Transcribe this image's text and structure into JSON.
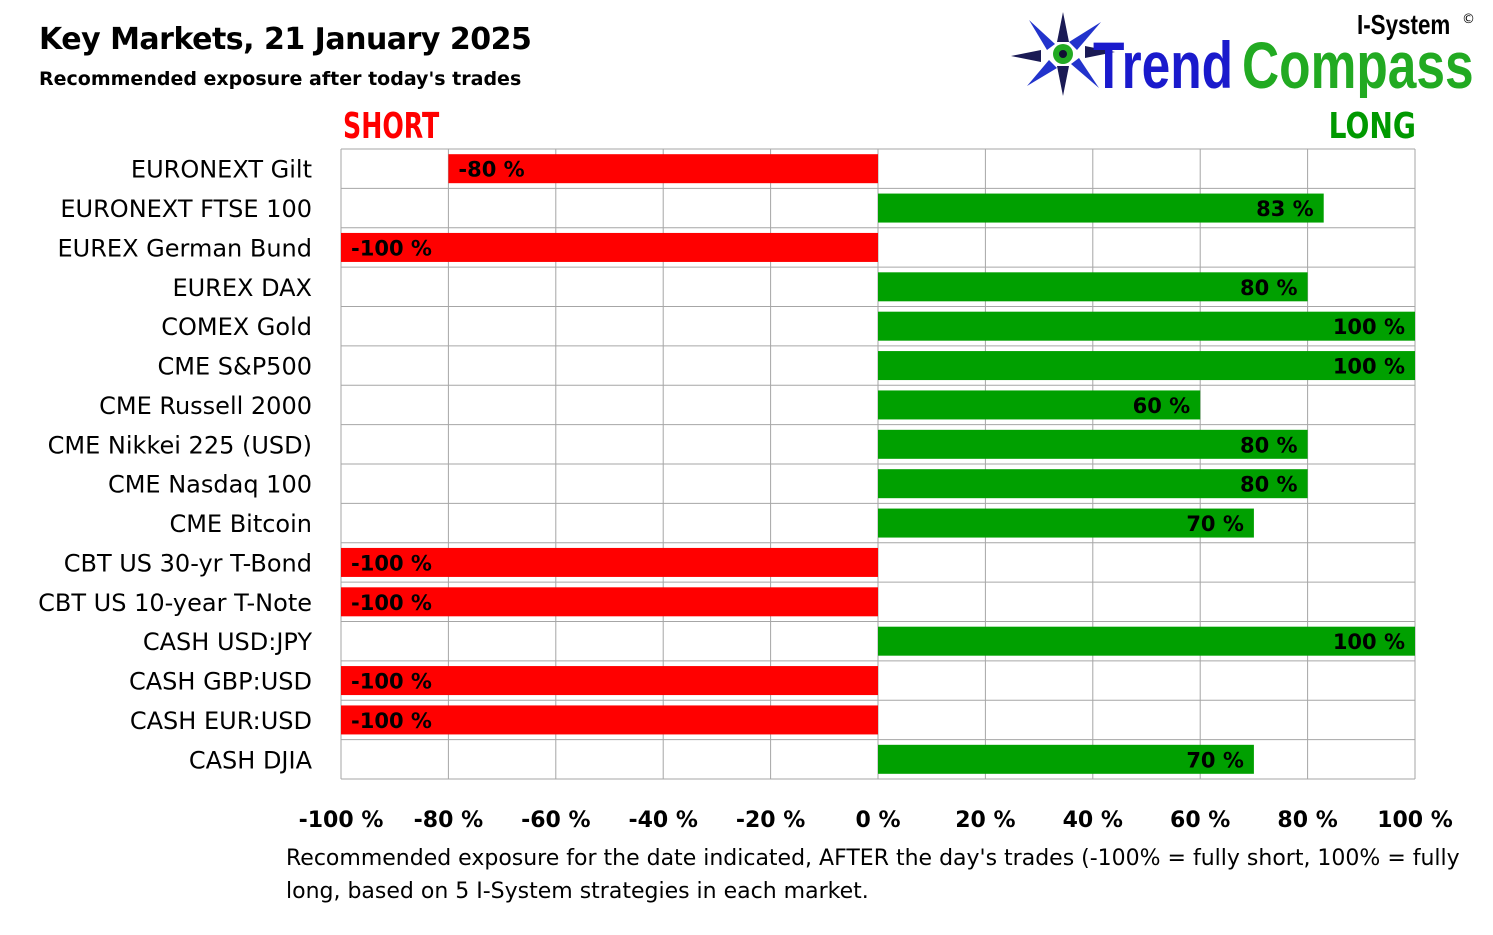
{
  "header": {
    "title": "Key Markets, 21 January 2025",
    "subtitle": "Recommended exposure after today's trades"
  },
  "logo": {
    "brand_top": "I-System",
    "copyright": "©",
    "brand_part1": "Trend",
    "brand_part2": "Compass",
    "colors": {
      "trend": "#1a1acc",
      "compass": "#22aa22",
      "star_dark": "#111133",
      "star_blue": "#2233cc"
    }
  },
  "labels": {
    "short": "SHORT",
    "long": "LONG"
  },
  "footnote": "Recommended exposure for the date indicated, AFTER the day's trades (-100% = fully short, 100% = fully long, based on 5 I-System strategies in each market.",
  "colors": {
    "negative": "#ff0000",
    "positive": "#00a000",
    "grid": "#a6a6a6"
  },
  "chart_data": {
    "type": "bar",
    "orientation": "horizontal",
    "xlim": [
      -100,
      100
    ],
    "x_ticks": [
      -100,
      -80,
      -60,
      -40,
      -20,
      0,
      20,
      40,
      60,
      80,
      100
    ],
    "x_tick_labels": [
      "-100 %",
      "-80 %",
      "-60 %",
      "-40 %",
      "-20 %",
      "0 %",
      "20 %",
      "40 %",
      "60 %",
      "80 %",
      "100 %"
    ],
    "grid": true,
    "categories": [
      "EURONEXT Gilt",
      "EURONEXT FTSE 100",
      "EUREX German Bund",
      "EUREX DAX",
      "COMEX Gold",
      "CME S&P500",
      "CME Russell 2000",
      "CME Nikkei 225 (USD)",
      "CME Nasdaq 100",
      "CME Bitcoin",
      "CBT US 30-yr T-Bond",
      "CBT US 10-year T-Note",
      "CASH USD:JPY",
      "CASH GBP:USD",
      "CASH EUR:USD",
      "CASH DJIA"
    ],
    "values": [
      -80,
      83,
      -100,
      80,
      100,
      100,
      60,
      80,
      80,
      70,
      -100,
      -100,
      100,
      -100,
      -100,
      70
    ],
    "data_labels": [
      "-80 %",
      "83 %",
      "-100 %",
      "80 %",
      "100 %",
      "100 %",
      "60 %",
      "80 %",
      "80 %",
      "70 %",
      "-100 %",
      "-100 %",
      "100 %",
      "-100 %",
      "-100 %",
      "70 %"
    ]
  }
}
